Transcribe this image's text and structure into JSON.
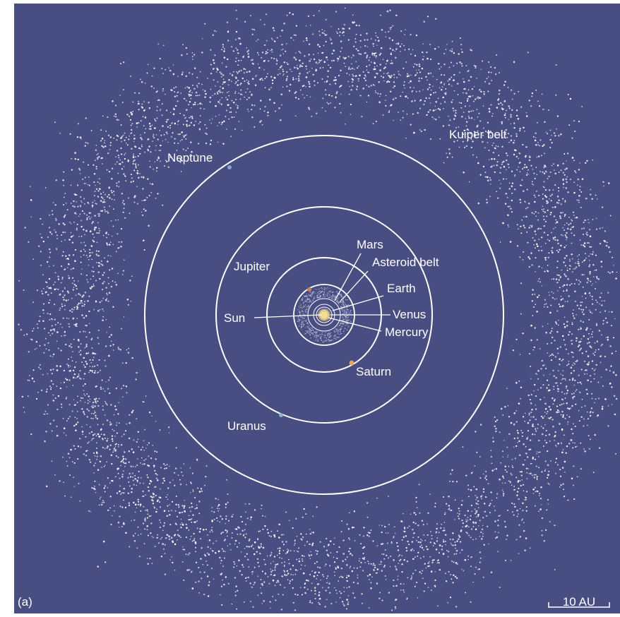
{
  "figure": {
    "panel_label": "(a)",
    "scale_bar_label": "10 AU",
    "colors": {
      "background": "#484e82",
      "orbit": "#ffffff",
      "belt_dots": "#ffffff",
      "sun": "#f3d27a",
      "jupiter": "#c9825a",
      "saturn": "#e8a85a",
      "uranus": "#8fb3c8",
      "neptune": "#7fa6d6"
    },
    "labels": {
      "kuiper_belt": "Kuiper belt",
      "neptune": "Neptune",
      "uranus": "Uranus",
      "saturn": "Saturn",
      "jupiter": "Jupiter",
      "mars": "Mars",
      "asteroid_belt": "Asteroid belt",
      "earth": "Earth",
      "venus": "Venus",
      "mercury": "Mercury",
      "sun": "Sun"
    }
  }
}
